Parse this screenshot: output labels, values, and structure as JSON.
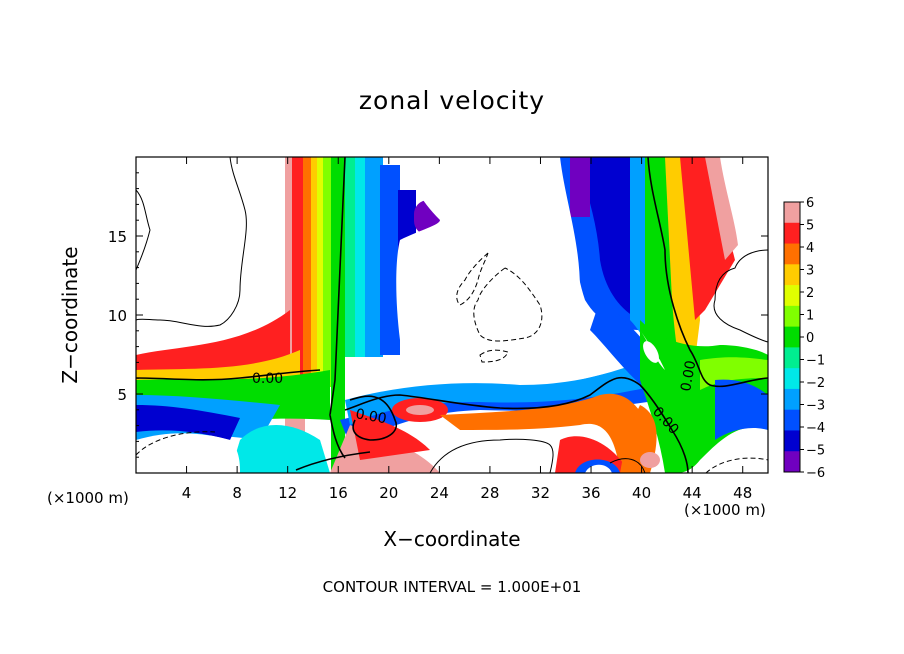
{
  "chart_data": {
    "type": "heatmap",
    "title": "zonal velocity",
    "xlabel": "X−coordinate",
    "ylabel": "Z−coordinate",
    "x_unit_label": "(×1000 m)",
    "xlim": [
      0,
      50
    ],
    "ylim": [
      0,
      20
    ],
    "x_ticks": [
      4,
      8,
      12,
      16,
      20,
      24,
      28,
      32,
      36,
      40,
      44,
      48
    ],
    "y_ticks": [
      5,
      10,
      15
    ],
    "colorbar": {
      "ticks": [
        6,
        5,
        4,
        3,
        2,
        1,
        0,
        -1,
        -2,
        -3,
        -4,
        -5,
        -6
      ],
      "colors": [
        "#f0a0a0",
        "#ff2020",
        "#ff7000",
        "#ffcc00",
        "#e0ff00",
        "#80ff00",
        "#00dd00",
        "#00ee90",
        "#00e8e8",
        "#00a0ff",
        "#0050ff",
        "#0000d0",
        "#7000c0"
      ]
    },
    "contour_label": "0.00",
    "footer": "CONTOUR INTERVAL = 1.000E+01",
    "bands": [
      {
        "x": [
          9.5,
          12.5
        ],
        "z": [
          7,
          19.5
        ],
        "value": 6
      },
      {
        "x": [
          12,
          14.5
        ],
        "z": [
          6,
          19.5
        ],
        "value": 3
      },
      {
        "x": [
          14,
          16.3
        ],
        "z": [
          5,
          19.5
        ],
        "value": 1
      },
      {
        "x": [
          16.3,
          19.5
        ],
        "z": [
          8,
          19.5
        ],
        "value": -2
      },
      {
        "x": [
          18,
          21.5
        ],
        "z": [
          11,
          19.5
        ],
        "value": -4
      },
      {
        "x": [
          36,
          39.5
        ],
        "z": [
          9,
          19.5
        ],
        "value": -4
      },
      {
        "x": [
          39.5,
          41.5
        ],
        "z": [
          9,
          19.5
        ],
        "value": 0
      },
      {
        "x": [
          41.5,
          44.5
        ],
        "z": [
          9,
          19.5
        ],
        "value": 4
      }
    ],
    "contours": {
      "zero_solid": true,
      "positive_solid": true,
      "negative_dashed": true
    }
  }
}
